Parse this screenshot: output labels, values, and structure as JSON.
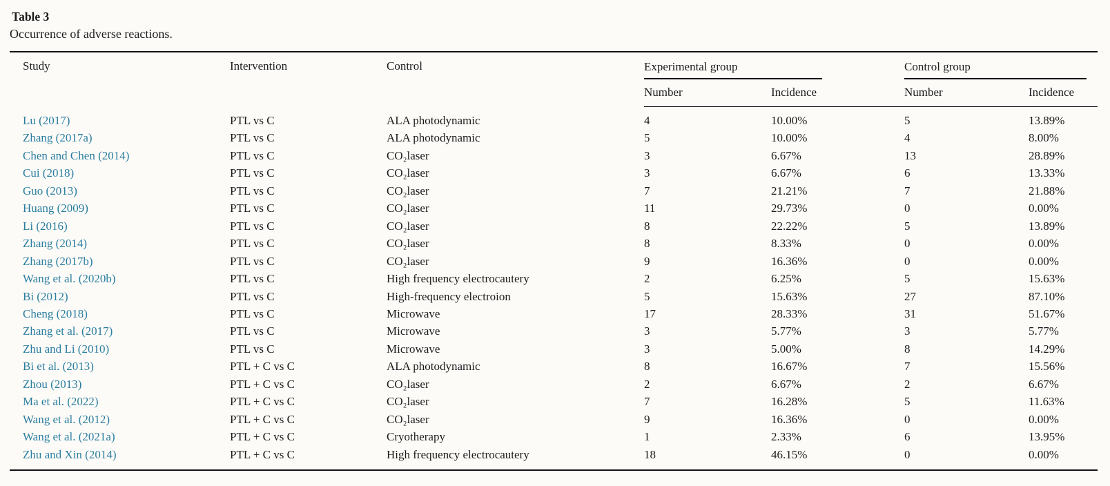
{
  "caption": {
    "title": "Table 3",
    "description": "Occurrence of adverse reactions."
  },
  "table": {
    "headers": {
      "study": "Study",
      "intervention": "Intervention",
      "control": "Control",
      "experimental_group": "Experimental group",
      "control_group": "Control group",
      "number": "Number",
      "incidence": "Incidence"
    },
    "rows": [
      {
        "study": "Lu (2017)",
        "intervention": "PTL vs C",
        "control": "ALA photodynamic",
        "exp_number": "4",
        "exp_incidence": "10.00%",
        "ctrl_number": "5",
        "ctrl_incidence": "13.89%"
      },
      {
        "study": "Zhang (2017a)",
        "intervention": "PTL vs C",
        "control": "ALA photodynamic",
        "exp_number": "5",
        "exp_incidence": "10.00%",
        "ctrl_number": "4",
        "ctrl_incidence": "8.00%"
      },
      {
        "study": "Chen and Chen (2014)",
        "intervention": "PTL vs C",
        "control": "CO₂laser",
        "exp_number": "3",
        "exp_incidence": "6.67%",
        "ctrl_number": "13",
        "ctrl_incidence": "28.89%"
      },
      {
        "study": "Cui (2018)",
        "intervention": "PTL vs C",
        "control": "CO₂laser",
        "exp_number": "3",
        "exp_incidence": "6.67%",
        "ctrl_number": "6",
        "ctrl_incidence": "13.33%"
      },
      {
        "study": "Guo (2013)",
        "intervention": "PTL vs C",
        "control": "CO₂laser",
        "exp_number": "7",
        "exp_incidence": "21.21%",
        "ctrl_number": "7",
        "ctrl_incidence": "21.88%"
      },
      {
        "study": "Huang (2009)",
        "intervention": "PTL vs C",
        "control": "CO₂laser",
        "exp_number": "11",
        "exp_incidence": "29.73%",
        "ctrl_number": "0",
        "ctrl_incidence": "0.00%"
      },
      {
        "study": "Li (2016)",
        "intervention": "PTL vs C",
        "control": "CO₂laser",
        "exp_number": "8",
        "exp_incidence": "22.22%",
        "ctrl_number": "5",
        "ctrl_incidence": "13.89%"
      },
      {
        "study": "Zhang (2014)",
        "intervention": "PTL vs C",
        "control": "CO₂laser",
        "exp_number": "8",
        "exp_incidence": "8.33%",
        "ctrl_number": "0",
        "ctrl_incidence": "0.00%"
      },
      {
        "study": "Zhang (2017b)",
        "intervention": "PTL vs C",
        "control": "CO₂laser",
        "exp_number": "9",
        "exp_incidence": "16.36%",
        "ctrl_number": "0",
        "ctrl_incidence": "0.00%"
      },
      {
        "study": "Wang et al. (2020b)",
        "intervention": "PTL vs C",
        "control": "High frequency electrocautery",
        "exp_number": "2",
        "exp_incidence": "6.25%",
        "ctrl_number": "5",
        "ctrl_incidence": "15.63%"
      },
      {
        "study": "Bi (2012)",
        "intervention": "PTL vs C",
        "control": "High-frequency electroion",
        "exp_number": "5",
        "exp_incidence": "15.63%",
        "ctrl_number": "27",
        "ctrl_incidence": "87.10%"
      },
      {
        "study": "Cheng (2018)",
        "intervention": "PTL vs C",
        "control": "Microwave",
        "exp_number": "17",
        "exp_incidence": "28.33%",
        "ctrl_number": "31",
        "ctrl_incidence": "51.67%"
      },
      {
        "study": "Zhang et al. (2017)",
        "intervention": "PTL vs C",
        "control": "Microwave",
        "exp_number": "3",
        "exp_incidence": "5.77%",
        "ctrl_number": "3",
        "ctrl_incidence": "5.77%"
      },
      {
        "study": "Zhu and Li (2010)",
        "intervention": "PTL vs C",
        "control": "Microwave",
        "exp_number": "3",
        "exp_incidence": "5.00%",
        "ctrl_number": "8",
        "ctrl_incidence": "14.29%"
      },
      {
        "study": "Bi et al. (2013)",
        "intervention": "PTL + C vs C",
        "control": "ALA photodynamic",
        "exp_number": "8",
        "exp_incidence": "16.67%",
        "ctrl_number": "7",
        "ctrl_incidence": "15.56%"
      },
      {
        "study": "Zhou (2013)",
        "intervention": "PTL + C vs C",
        "control": "CO₂laser",
        "exp_number": "2",
        "exp_incidence": "6.67%",
        "ctrl_number": "2",
        "ctrl_incidence": "6.67%"
      },
      {
        "study": "Ma et al. (2022)",
        "intervention": "PTL + C vs C",
        "control": "CO₂laser",
        "exp_number": "7",
        "exp_incidence": "16.28%",
        "ctrl_number": "5",
        "ctrl_incidence": "11.63%"
      },
      {
        "study": "Wang et al. (2012)",
        "intervention": "PTL + C vs C",
        "control": "CO₂laser",
        "exp_number": "9",
        "exp_incidence": "16.36%",
        "ctrl_number": "0",
        "ctrl_incidence": "0.00%"
      },
      {
        "study": "Wang et al. (2021a)",
        "intervention": "PTL + C vs C",
        "control": "Cryotherapy",
        "exp_number": "1",
        "exp_incidence": "2.33%",
        "ctrl_number": "6",
        "ctrl_incidence": "13.95%"
      },
      {
        "study": "Zhu and Xin (2014)",
        "intervention": "PTL + C vs C",
        "control": "High frequency electrocautery",
        "exp_number": "18",
        "exp_incidence": "46.15%",
        "ctrl_number": "0",
        "ctrl_incidence": "0.00%"
      }
    ]
  }
}
